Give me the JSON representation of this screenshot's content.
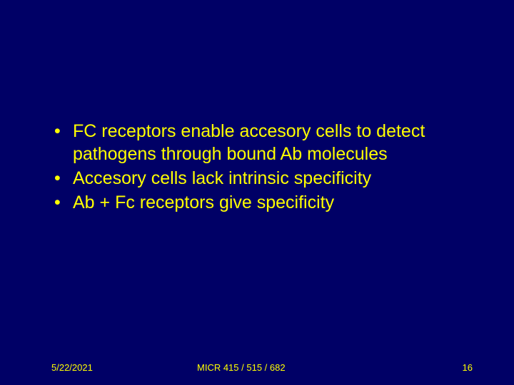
{
  "slide": {
    "background_color": "#000066",
    "text_color": "#ffff00",
    "bullet_fontsize": 25,
    "footer_fontsize": 13,
    "bullets": [
      "FC receptors enable accesory cells to detect pathogens through bound Ab molecules",
      "Accesory cells lack intrinsic specificity",
      "Ab + Fc receptors give specificity"
    ],
    "footer": {
      "date": "5/22/2021",
      "course": "MICR 415 / 515 / 682",
      "page": "16"
    }
  }
}
